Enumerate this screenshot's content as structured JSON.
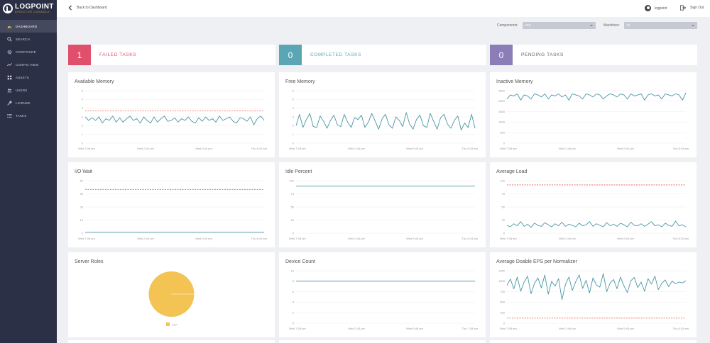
{
  "brand": {
    "name": "LOGPOINT",
    "tagline": "DIRECTOR CONSOLE"
  },
  "sidebar": {
    "items": [
      {
        "label": "DASHBOARD",
        "icon": "dashboard-icon",
        "active": true
      },
      {
        "label": "SEARCH",
        "icon": "search-icon"
      },
      {
        "label": "CONFIGURE",
        "icon": "gear-icon"
      },
      {
        "label": "CONFIG VIEW",
        "icon": "config-view-icon"
      },
      {
        "label": "ASSETS",
        "icon": "grid-icon"
      },
      {
        "label": "USERS",
        "icon": "users-icon"
      },
      {
        "label": "LICENSE",
        "icon": "key-icon"
      },
      {
        "label": "TASKS",
        "icon": "list-icon"
      }
    ]
  },
  "topbar": {
    "back_label": "Back to Dashboard",
    "user_name": "logpoint",
    "signout_label": "Sign Out"
  },
  "filters": {
    "components_label": "Components:",
    "components_value": "LPS",
    "machines_label": "Machines:",
    "machines_value": "All"
  },
  "tasks": [
    {
      "count": "1",
      "label": "FAILED TASKS",
      "color": "#e0506c",
      "text_color": "#e0506c"
    },
    {
      "count": "0",
      "label": "COMPLETED TASKS",
      "color": "#5ba6b5",
      "text_color": "#5ba6b5"
    },
    {
      "count": "0",
      "label": "PENDING TASKS",
      "color": "#8b7db8",
      "text_color": "#666666"
    }
  ],
  "chart_data": [
    {
      "title": "Available Memory",
      "type": "line",
      "y_ticks": [
        "0",
        "1",
        "2",
        "3",
        "4",
        "5",
        "6"
      ],
      "ylim": [
        0,
        6
      ],
      "x_ticks": [
        "Wed 7:08 am",
        "Wed 2:44 pm",
        "Wed 9:43 pm",
        "Thu 8:15 am"
      ],
      "threshold": 3.7,
      "series": [
        {
          "values": [
            3.0,
            2.6,
            2.9,
            2.6,
            3.0,
            2.3,
            2.8,
            2.6,
            3.1,
            2.4,
            2.9,
            2.4,
            2.8,
            3.1,
            2.6,
            2.8,
            2.3,
            3.0,
            2.6,
            2.3,
            3.0,
            2.4,
            2.8,
            3.1,
            2.5,
            2.6,
            2.9,
            2.4,
            2.8,
            2.6,
            3.0,
            2.5,
            2.3,
            2.9,
            2.5,
            3.0,
            2.6,
            2.8,
            2.4,
            3.1,
            2.6,
            2.8,
            3.0,
            2.5,
            2.3,
            2.9,
            2.8,
            2.5,
            3.0,
            2.1,
            2.8,
            3.1,
            2.6
          ]
        }
      ]
    },
    {
      "title": "Free Memory",
      "type": "line",
      "y_ticks": [
        "0",
        "1",
        "2",
        "3",
        "4",
        "5",
        "6"
      ],
      "ylim": [
        0,
        6
      ],
      "x_ticks": [
        "Wed 7:08 am",
        "Wed 2:44 pm",
        "Wed 9:43 pm",
        "Thu 8:15 am"
      ],
      "series": [
        {
          "values": [
            2.0,
            3.3,
            1.8,
            2.7,
            3.4,
            1.9,
            1.8,
            3.1,
            2.5,
            1.7,
            2.6,
            3.2,
            2.1,
            1.9,
            3.3,
            2.4,
            1.8,
            2.9,
            2.7,
            3.2,
            1.8,
            2.4,
            3.4,
            2.5,
            1.6,
            2.8,
            3.3,
            2.1,
            1.7,
            3.0,
            2.6,
            1.9,
            3.5,
            2.2,
            1.6,
            2.7,
            3.2,
            2.0,
            1.8,
            3.4,
            2.5,
            1.6,
            2.9,
            3.3,
            2.2,
            1.7,
            2.6,
            3.1,
            1.5,
            2.3,
            1.8,
            3.3,
            1.7
          ]
        }
      ]
    },
    {
      "title": "Inactive Memory",
      "type": "line",
      "y_ticks": [
        "0",
        "500",
        "1000",
        "1500",
        "2000",
        "2500"
      ],
      "ylim": [
        0,
        2500
      ],
      "x_ticks": [
        "Wed 7:08 am",
        "Wed 2:44 pm",
        "Wed 9:43 pm",
        "Thu 8:15 am"
      ],
      "series": [
        {
          "values": [
            2100,
            2300,
            2250,
            2350,
            2050,
            2300,
            2250,
            2100,
            2350,
            2300,
            2200,
            2350,
            2100,
            2300,
            2250,
            2350,
            2200,
            2300,
            2050,
            2350,
            2300,
            2250,
            2100,
            2350,
            2300,
            2200,
            2350,
            2300,
            2100,
            2250,
            2350,
            2300,
            2200,
            2350,
            2300,
            2100,
            2350,
            2250,
            2300,
            2350,
            2050,
            2300,
            2350,
            2250,
            2300,
            2100,
            2350,
            2300,
            2250,
            2350,
            2300,
            2050,
            2400
          ]
        }
      ]
    },
    {
      "title": "I/O Wait",
      "type": "line",
      "y_ticks": [
        "0",
        "15",
        "30",
        "45",
        "60"
      ],
      "ylim": [
        0,
        60
      ],
      "x_ticks": [
        "Wed 7:08 am",
        "Wed 2:44 pm",
        "Wed 9:43 pm",
        "Thu 8:15 am"
      ],
      "threshold": 50,
      "series": [
        {
          "values": [
            1,
            1,
            1,
            1,
            1,
            1,
            1,
            1,
            1,
            1,
            1,
            1,
            1,
            1,
            1,
            1,
            1,
            1,
            1,
            1
          ]
        }
      ]
    },
    {
      "title": "Idle Percent",
      "type": "line",
      "y_ticks": [
        "0",
        "25",
        "50",
        "75",
        "100"
      ],
      "ylim": [
        0,
        100
      ],
      "x_ticks": [
        "Wed 7:08 am",
        "Wed 2:44 pm",
        "Wed 9:43 pm",
        "Thu 8:15 am"
      ],
      "series": [
        {
          "values": [
            90,
            90,
            90,
            90,
            90,
            90,
            90,
            90,
            90,
            90,
            90,
            90,
            90,
            90,
            90,
            90,
            90,
            90,
            90,
            90
          ]
        }
      ]
    },
    {
      "title": "Average Load",
      "type": "line",
      "y_ticks": [
        "0",
        "25",
        "50",
        "75",
        "100"
      ],
      "ylim": [
        0,
        100
      ],
      "x_ticks": [
        "Wed 7:08 am",
        "Wed 2:44 pm",
        "Wed 9:43 pm",
        "Thu 8:15 am"
      ],
      "threshold": 92,
      "series": [
        {
          "values": [
            15,
            12,
            18,
            14,
            22,
            13,
            17,
            11,
            19,
            15,
            13,
            20,
            16,
            12,
            18,
            14,
            21,
            13,
            17,
            15,
            12,
            19,
            14,
            16,
            22,
            13,
            18,
            15,
            12,
            20,
            14,
            17,
            13,
            19,
            16,
            12,
            21,
            15,
            14,
            18,
            13,
            17,
            22,
            14,
            16,
            12,
            19,
            15,
            13,
            23,
            14,
            16,
            12
          ]
        }
      ]
    },
    {
      "title": "Server Roles",
      "type": "pie",
      "slices": [
        {
          "name": "CLP",
          "value": 100,
          "color": "#f3c354"
        }
      ]
    },
    {
      "title": "Device Count",
      "type": "line",
      "y_ticks": [
        "0",
        "2",
        "4",
        "6",
        "8",
        "10"
      ],
      "ylim": [
        0,
        10
      ],
      "x_ticks": [
        "Wed 7:08 am",
        "Wed 2:43 pm",
        "Wed 9:48 pm",
        "Thu 7:38 am"
      ],
      "series": [
        {
          "values": [
            8,
            8,
            8,
            8,
            8,
            8,
            8,
            8,
            8,
            8,
            8,
            8,
            8,
            8,
            8,
            8,
            8,
            8,
            8,
            8
          ]
        }
      ]
    },
    {
      "title": "Average Doable EPS per Normalizer",
      "type": "line",
      "y_ticks": [
        "0",
        "250",
        "500",
        "750",
        "1000",
        "1250"
      ],
      "ylim": [
        0,
        1250
      ],
      "x_ticks": [
        "Wed 7:08 am",
        "Wed 2:44 pm",
        "Wed 9:43 pm",
        "Thu 8:15 am"
      ],
      "threshold": 120,
      "series": [
        {
          "values": [
            900,
            1050,
            820,
            1100,
            760,
            980,
            1120,
            700,
            950,
            1080,
            840,
            1150,
            690,
            1000,
            880,
            1060,
            560,
            920,
            1100,
            780,
            990,
            1150,
            830,
            1020,
            720,
            1080,
            910,
            860,
            1180,
            750,
            960,
            1040,
            820,
            1100,
            890,
            730,
            1010,
            1090,
            850,
            980,
            760,
            1060,
            930,
            1120,
            800,
            950,
            1030,
            870,
            1000,
            940,
            980,
            960,
            1010
          ]
        }
      ]
    }
  ]
}
